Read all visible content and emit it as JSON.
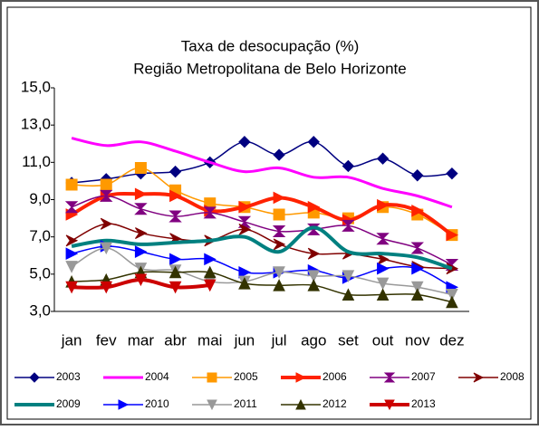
{
  "chart_data": {
    "type": "line",
    "title": "Taxa de desocupação (%)",
    "subtitle": "Região Metropolitana de Belo Horizonte",
    "categories": [
      "jan",
      "fev",
      "mar",
      "abr",
      "mai",
      "jun",
      "jul",
      "ago",
      "set",
      "out",
      "nov",
      "dez"
    ],
    "ylim": [
      3,
      15
    ],
    "yticks": [
      {
        "value": 3,
        "label": "3,0"
      },
      {
        "value": 5,
        "label": "5,0"
      },
      {
        "value": 7,
        "label": "7,0"
      },
      {
        "value": 9,
        "label": "9,0"
      },
      {
        "value": 11,
        "label": "11,0"
      },
      {
        "value": 13,
        "label": "13,0"
      },
      {
        "value": 15,
        "label": "15,0"
      }
    ],
    "series": [
      {
        "name": "2003",
        "color": "#000080",
        "marker": "diamond",
        "values": [
          9.9,
          10.1,
          10.4,
          10.5,
          11.0,
          12.1,
          11.4,
          12.1,
          10.8,
          11.2,
          10.3,
          10.4
        ]
      },
      {
        "name": "2004",
        "color": "#ff00ff",
        "marker": "none",
        "values": [
          12.3,
          11.9,
          12.1,
          11.6,
          11.0,
          10.5,
          10.7,
          10.2,
          10.2,
          9.6,
          9.2,
          8.6
        ]
      },
      {
        "name": "2005",
        "color": "#ff9900",
        "marker": "square",
        "values": [
          9.8,
          9.8,
          10.7,
          9.5,
          8.8,
          8.6,
          8.2,
          8.3,
          8.0,
          8.6,
          8.2,
          7.1
        ]
      },
      {
        "name": "2006",
        "color": "#ff2200",
        "marker": "triangle-right",
        "values": [
          8.2,
          9.2,
          9.3,
          9.2,
          8.4,
          8.6,
          9.1,
          8.6,
          7.9,
          8.7,
          8.4,
          7.1
        ]
      },
      {
        "name": "2007",
        "color": "#800080",
        "marker": "bowtie",
        "values": [
          8.6,
          9.2,
          8.5,
          8.1,
          8.3,
          7.8,
          7.3,
          7.4,
          7.6,
          6.9,
          6.4,
          5.5
        ]
      },
      {
        "name": "2008",
        "color": "#800000",
        "marker": "arrow-right",
        "values": [
          6.8,
          7.7,
          7.2,
          6.9,
          6.8,
          7.4,
          6.6,
          6.1,
          6.1,
          5.8,
          5.4,
          5.3
        ]
      },
      {
        "name": "2009",
        "color": "#008080",
        "marker": "none",
        "values": [
          6.5,
          6.8,
          6.6,
          6.7,
          6.8,
          7.0,
          6.2,
          7.5,
          6.2,
          6.1,
          5.9,
          5.3
        ]
      },
      {
        "name": "2010",
        "color": "#0000ff",
        "marker": "triangle-right",
        "values": [
          6.1,
          6.5,
          6.2,
          5.8,
          5.8,
          5.1,
          5.1,
          5.2,
          4.8,
          5.3,
          5.3,
          4.3
        ]
      },
      {
        "name": "2011",
        "color": "#999999",
        "marker": "triangle-down",
        "values": [
          5.4,
          6.4,
          5.3,
          5.2,
          4.6,
          4.6,
          5.1,
          4.9,
          4.9,
          4.5,
          4.3,
          3.9
        ]
      },
      {
        "name": "2012",
        "color": "#333300",
        "marker": "triangle-up",
        "values": [
          4.6,
          4.7,
          5.1,
          5.1,
          5.1,
          4.5,
          4.4,
          4.4,
          3.9,
          3.9,
          3.9,
          3.5
        ]
      },
      {
        "name": "2013",
        "color": "#cc0000",
        "marker": "triangle-down",
        "values": [
          4.3,
          4.3,
          4.7,
          4.3,
          4.4,
          null,
          null,
          null,
          null,
          null,
          null,
          null
        ]
      }
    ]
  }
}
